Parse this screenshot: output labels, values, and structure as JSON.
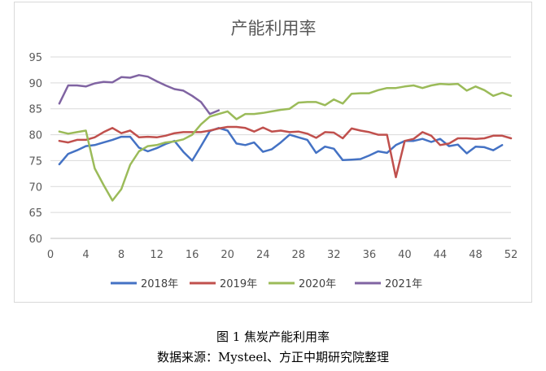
{
  "chart_data": {
    "type": "line",
    "title": "产能利用率",
    "xlabel": "",
    "ylabel": "",
    "xlim": [
      0,
      52
    ],
    "ylim": [
      60,
      95
    ],
    "x_ticks": [
      0,
      4,
      8,
      12,
      16,
      20,
      24,
      28,
      32,
      36,
      40,
      44,
      48,
      52
    ],
    "y_ticks": [
      60,
      65,
      70,
      75,
      80,
      85,
      90,
      95
    ],
    "grid": "horizontal",
    "legend_position": "bottom",
    "series": [
      {
        "name": "2018年",
        "color": "#4472C4",
        "points": [
          [
            1,
            74.3
          ],
          [
            2,
            76.3
          ],
          [
            3,
            77
          ],
          [
            4,
            77.8
          ],
          [
            5,
            78
          ],
          [
            6,
            78.5
          ],
          [
            7,
            79
          ],
          [
            8,
            79.6
          ],
          [
            9,
            79.6
          ],
          [
            10,
            77.5
          ],
          [
            11,
            76.8
          ],
          [
            12,
            77.4
          ],
          [
            13,
            78.2
          ],
          [
            14,
            78.8
          ],
          [
            15,
            76.7
          ],
          [
            16,
            75
          ],
          [
            17,
            77.8
          ],
          [
            18,
            80.7
          ],
          [
            19,
            81.3
          ],
          [
            20,
            80.8
          ],
          [
            21,
            78.3
          ],
          [
            22,
            78
          ],
          [
            23,
            78.5
          ],
          [
            24,
            76.7
          ],
          [
            25,
            77.2
          ],
          [
            26,
            78.5
          ],
          [
            27,
            80
          ],
          [
            28,
            79.5
          ],
          [
            29,
            79
          ],
          [
            30,
            76.5
          ],
          [
            31,
            77.7
          ],
          [
            32,
            77.3
          ],
          [
            33,
            75.1
          ],
          [
            34,
            75.2
          ],
          [
            35,
            75.3
          ],
          [
            36,
            76
          ],
          [
            37,
            76.8
          ],
          [
            38,
            76.5
          ],
          [
            39,
            78
          ],
          [
            40,
            78.8
          ],
          [
            41,
            78.8
          ],
          [
            42,
            79.2
          ],
          [
            43,
            78.6
          ],
          [
            44,
            79.2
          ],
          [
            45,
            77.8
          ],
          [
            46,
            78.1
          ],
          [
            47,
            76.4
          ],
          [
            48,
            77.7
          ],
          [
            49,
            77.6
          ],
          [
            50,
            77
          ],
          [
            51,
            78
          ]
        ]
      },
      {
        "name": "2019年",
        "color": "#C0504D",
        "points": [
          [
            1,
            78.8
          ],
          [
            2,
            78.5
          ],
          [
            3,
            79
          ],
          [
            4,
            79
          ],
          [
            5,
            79.5
          ],
          [
            6,
            80.5
          ],
          [
            7,
            81.3
          ],
          [
            8,
            80.3
          ],
          [
            9,
            80.8
          ],
          [
            10,
            79.5
          ],
          [
            11,
            79.6
          ],
          [
            12,
            79.5
          ],
          [
            13,
            79.8
          ],
          [
            14,
            80.3
          ],
          [
            15,
            80.5
          ],
          [
            16,
            80.5
          ],
          [
            17,
            80.5
          ],
          [
            18,
            80.8
          ],
          [
            19,
            81.2
          ],
          [
            20,
            81.5
          ],
          [
            21,
            81.5
          ],
          [
            22,
            81.3
          ],
          [
            23,
            80.6
          ],
          [
            24,
            81.4
          ],
          [
            25,
            80.6
          ],
          [
            26,
            80.8
          ],
          [
            27,
            80.5
          ],
          [
            28,
            80.6
          ],
          [
            29,
            80.2
          ],
          [
            30,
            79.4
          ],
          [
            31,
            80.5
          ],
          [
            32,
            80.4
          ],
          [
            33,
            79.3
          ],
          [
            34,
            81.2
          ],
          [
            35,
            80.8
          ],
          [
            36,
            80.5
          ],
          [
            37,
            80
          ],
          [
            38,
            80
          ],
          [
            39,
            71.8
          ],
          [
            40,
            78.8
          ],
          [
            41,
            79.2
          ],
          [
            42,
            80.5
          ],
          [
            43,
            79.8
          ],
          [
            44,
            78
          ],
          [
            45,
            78.3
          ],
          [
            46,
            79.3
          ],
          [
            47,
            79.3
          ],
          [
            48,
            79.2
          ],
          [
            49,
            79.3
          ],
          [
            50,
            79.8
          ],
          [
            51,
            79.8
          ],
          [
            52,
            79.3
          ]
        ]
      },
      {
        "name": "2020年",
        "color": "#9BBB59",
        "points": [
          [
            1,
            80.6
          ],
          [
            2,
            80.2
          ],
          [
            3,
            80.5
          ],
          [
            4,
            80.8
          ],
          [
            5,
            73.5
          ],
          [
            6,
            70.3
          ],
          [
            7,
            67.3
          ],
          [
            8,
            69.5
          ],
          [
            9,
            74.2
          ],
          [
            10,
            76.8
          ],
          [
            11,
            77.8
          ],
          [
            12,
            78
          ],
          [
            13,
            78.5
          ],
          [
            14,
            78.7
          ],
          [
            15,
            79.1
          ],
          [
            16,
            80
          ],
          [
            17,
            82
          ],
          [
            18,
            83.5
          ],
          [
            19,
            84
          ],
          [
            20,
            84.5
          ],
          [
            21,
            83
          ],
          [
            22,
            84
          ],
          [
            23,
            84
          ],
          [
            24,
            84.2
          ],
          [
            25,
            84.5
          ],
          [
            26,
            84.8
          ],
          [
            27,
            85
          ],
          [
            28,
            86.2
          ],
          [
            29,
            86.3
          ],
          [
            30,
            86.3
          ],
          [
            31,
            85.7
          ],
          [
            32,
            86.8
          ],
          [
            33,
            86
          ],
          [
            34,
            87.9
          ],
          [
            35,
            88
          ],
          [
            36,
            88
          ],
          [
            37,
            88.6
          ],
          [
            38,
            89
          ],
          [
            39,
            89
          ],
          [
            40,
            89.3
          ],
          [
            41,
            89.5
          ],
          [
            42,
            89
          ],
          [
            43,
            89.5
          ],
          [
            44,
            89.8
          ],
          [
            45,
            89.7
          ],
          [
            46,
            89.8
          ],
          [
            47,
            88.5
          ],
          [
            48,
            89.3
          ],
          [
            49,
            88.6
          ],
          [
            50,
            87.5
          ],
          [
            51,
            88.1
          ],
          [
            52,
            87.5
          ]
        ]
      },
      {
        "name": "2021年",
        "color": "#8064A2",
        "points": [
          [
            1,
            86
          ],
          [
            2,
            89.5
          ],
          [
            3,
            89.5
          ],
          [
            4,
            89.3
          ],
          [
            5,
            89.9
          ],
          [
            6,
            90.2
          ],
          [
            7,
            90.1
          ],
          [
            8,
            91.1
          ],
          [
            9,
            91
          ],
          [
            10,
            91.5
          ],
          [
            11,
            91.2
          ],
          [
            12,
            90.3
          ],
          [
            13,
            89.5
          ],
          [
            14,
            88.8
          ],
          [
            15,
            88.5
          ],
          [
            16,
            87.5
          ],
          [
            17,
            86.3
          ],
          [
            18,
            84
          ],
          [
            19,
            84.7
          ]
        ]
      }
    ]
  },
  "captions": {
    "figure": "图  1 焦炭产能利用率",
    "source": "数据来源：Mysteel、方正中期研究院整理"
  }
}
